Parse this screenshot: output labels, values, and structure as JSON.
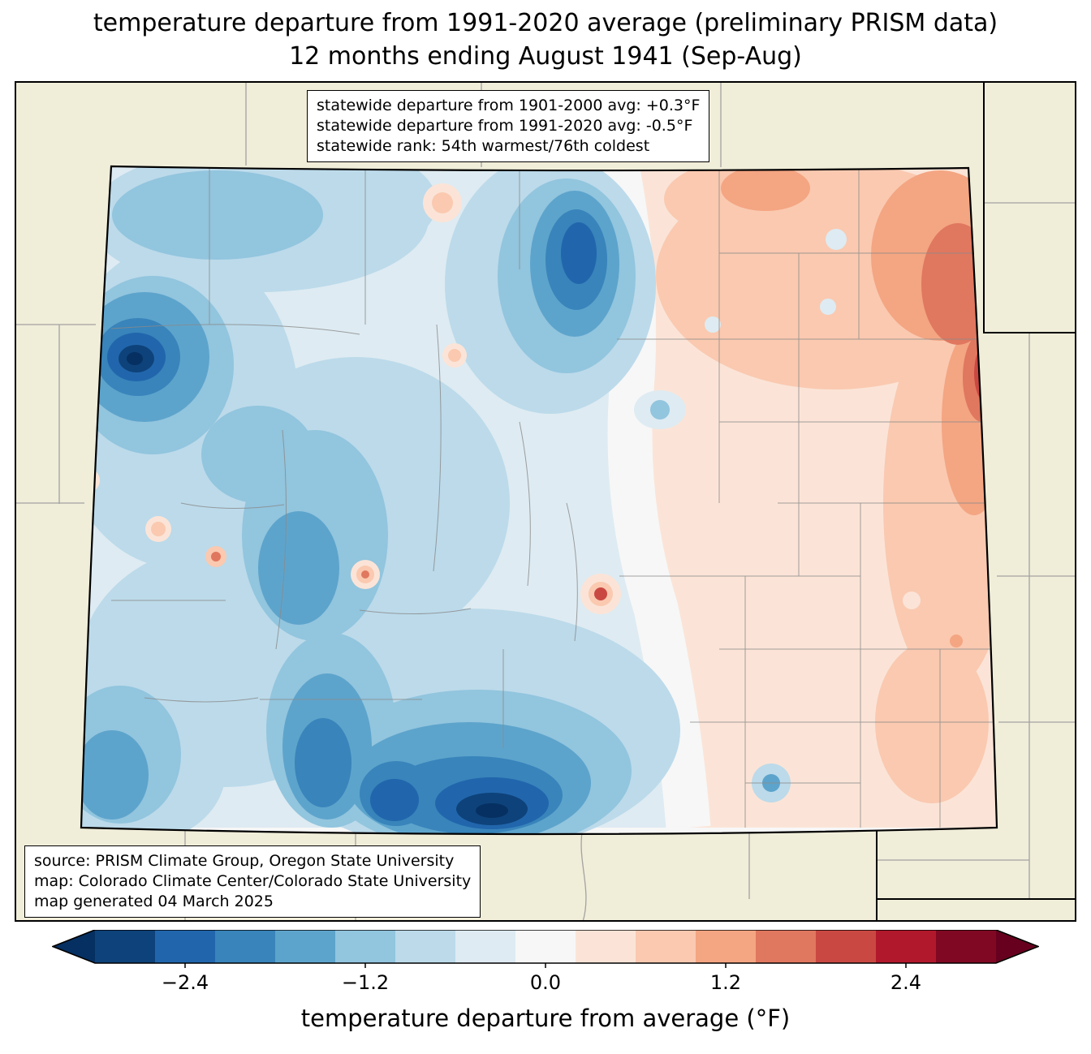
{
  "title": {
    "line1": "temperature departure from 1991-2020 average (preliminary PRISM data)",
    "line2": "12 months ending August 1941 (Sep-Aug)"
  },
  "stats_box": {
    "line1": "statewide departure from 1901-2000 avg: +0.3°F",
    "line2": "statewide departure from 1991-2020 avg: -0.5°F",
    "line3": "statewide rank: 54th warmest/76th coldest"
  },
  "source_box": {
    "line1": "source: PRISM Climate Group, Oregon State University",
    "line2": "map: Colorado Climate Center/Colorado State University",
    "line3": "map generated 04 March 2025"
  },
  "colorbar": {
    "label": "temperature departure from average (°F)",
    "min": -3.0,
    "max": 3.0,
    "step": 0.4,
    "left_arrow_color": "#053061",
    "right_arrow_color": "#67001f",
    "segment_colors": [
      "#0e427a",
      "#2166ac",
      "#3884bb",
      "#5da4cc",
      "#92c5de",
      "#bcdaea",
      "#deebf2",
      "#f7f7f7",
      "#fbe4d7",
      "#fac9b0",
      "#f4a582",
      "#e0775f",
      "#ca4842",
      "#b2182b",
      "#800823"
    ],
    "ticks": [
      {
        "value": -2.4,
        "label": "−2.4"
      },
      {
        "value": -1.2,
        "label": "−1.2"
      },
      {
        "value": 0.0,
        "label": "0.0"
      },
      {
        "value": 1.2,
        "label": "1.2"
      },
      {
        "value": 2.4,
        "label": "2.4"
      }
    ]
  },
  "map": {
    "region": "Colorado",
    "background_land": "#f0edd9",
    "border_color": "#000000",
    "county_line_color": "#8a8a8a",
    "near_zero_color": "#f7f7f7"
  }
}
